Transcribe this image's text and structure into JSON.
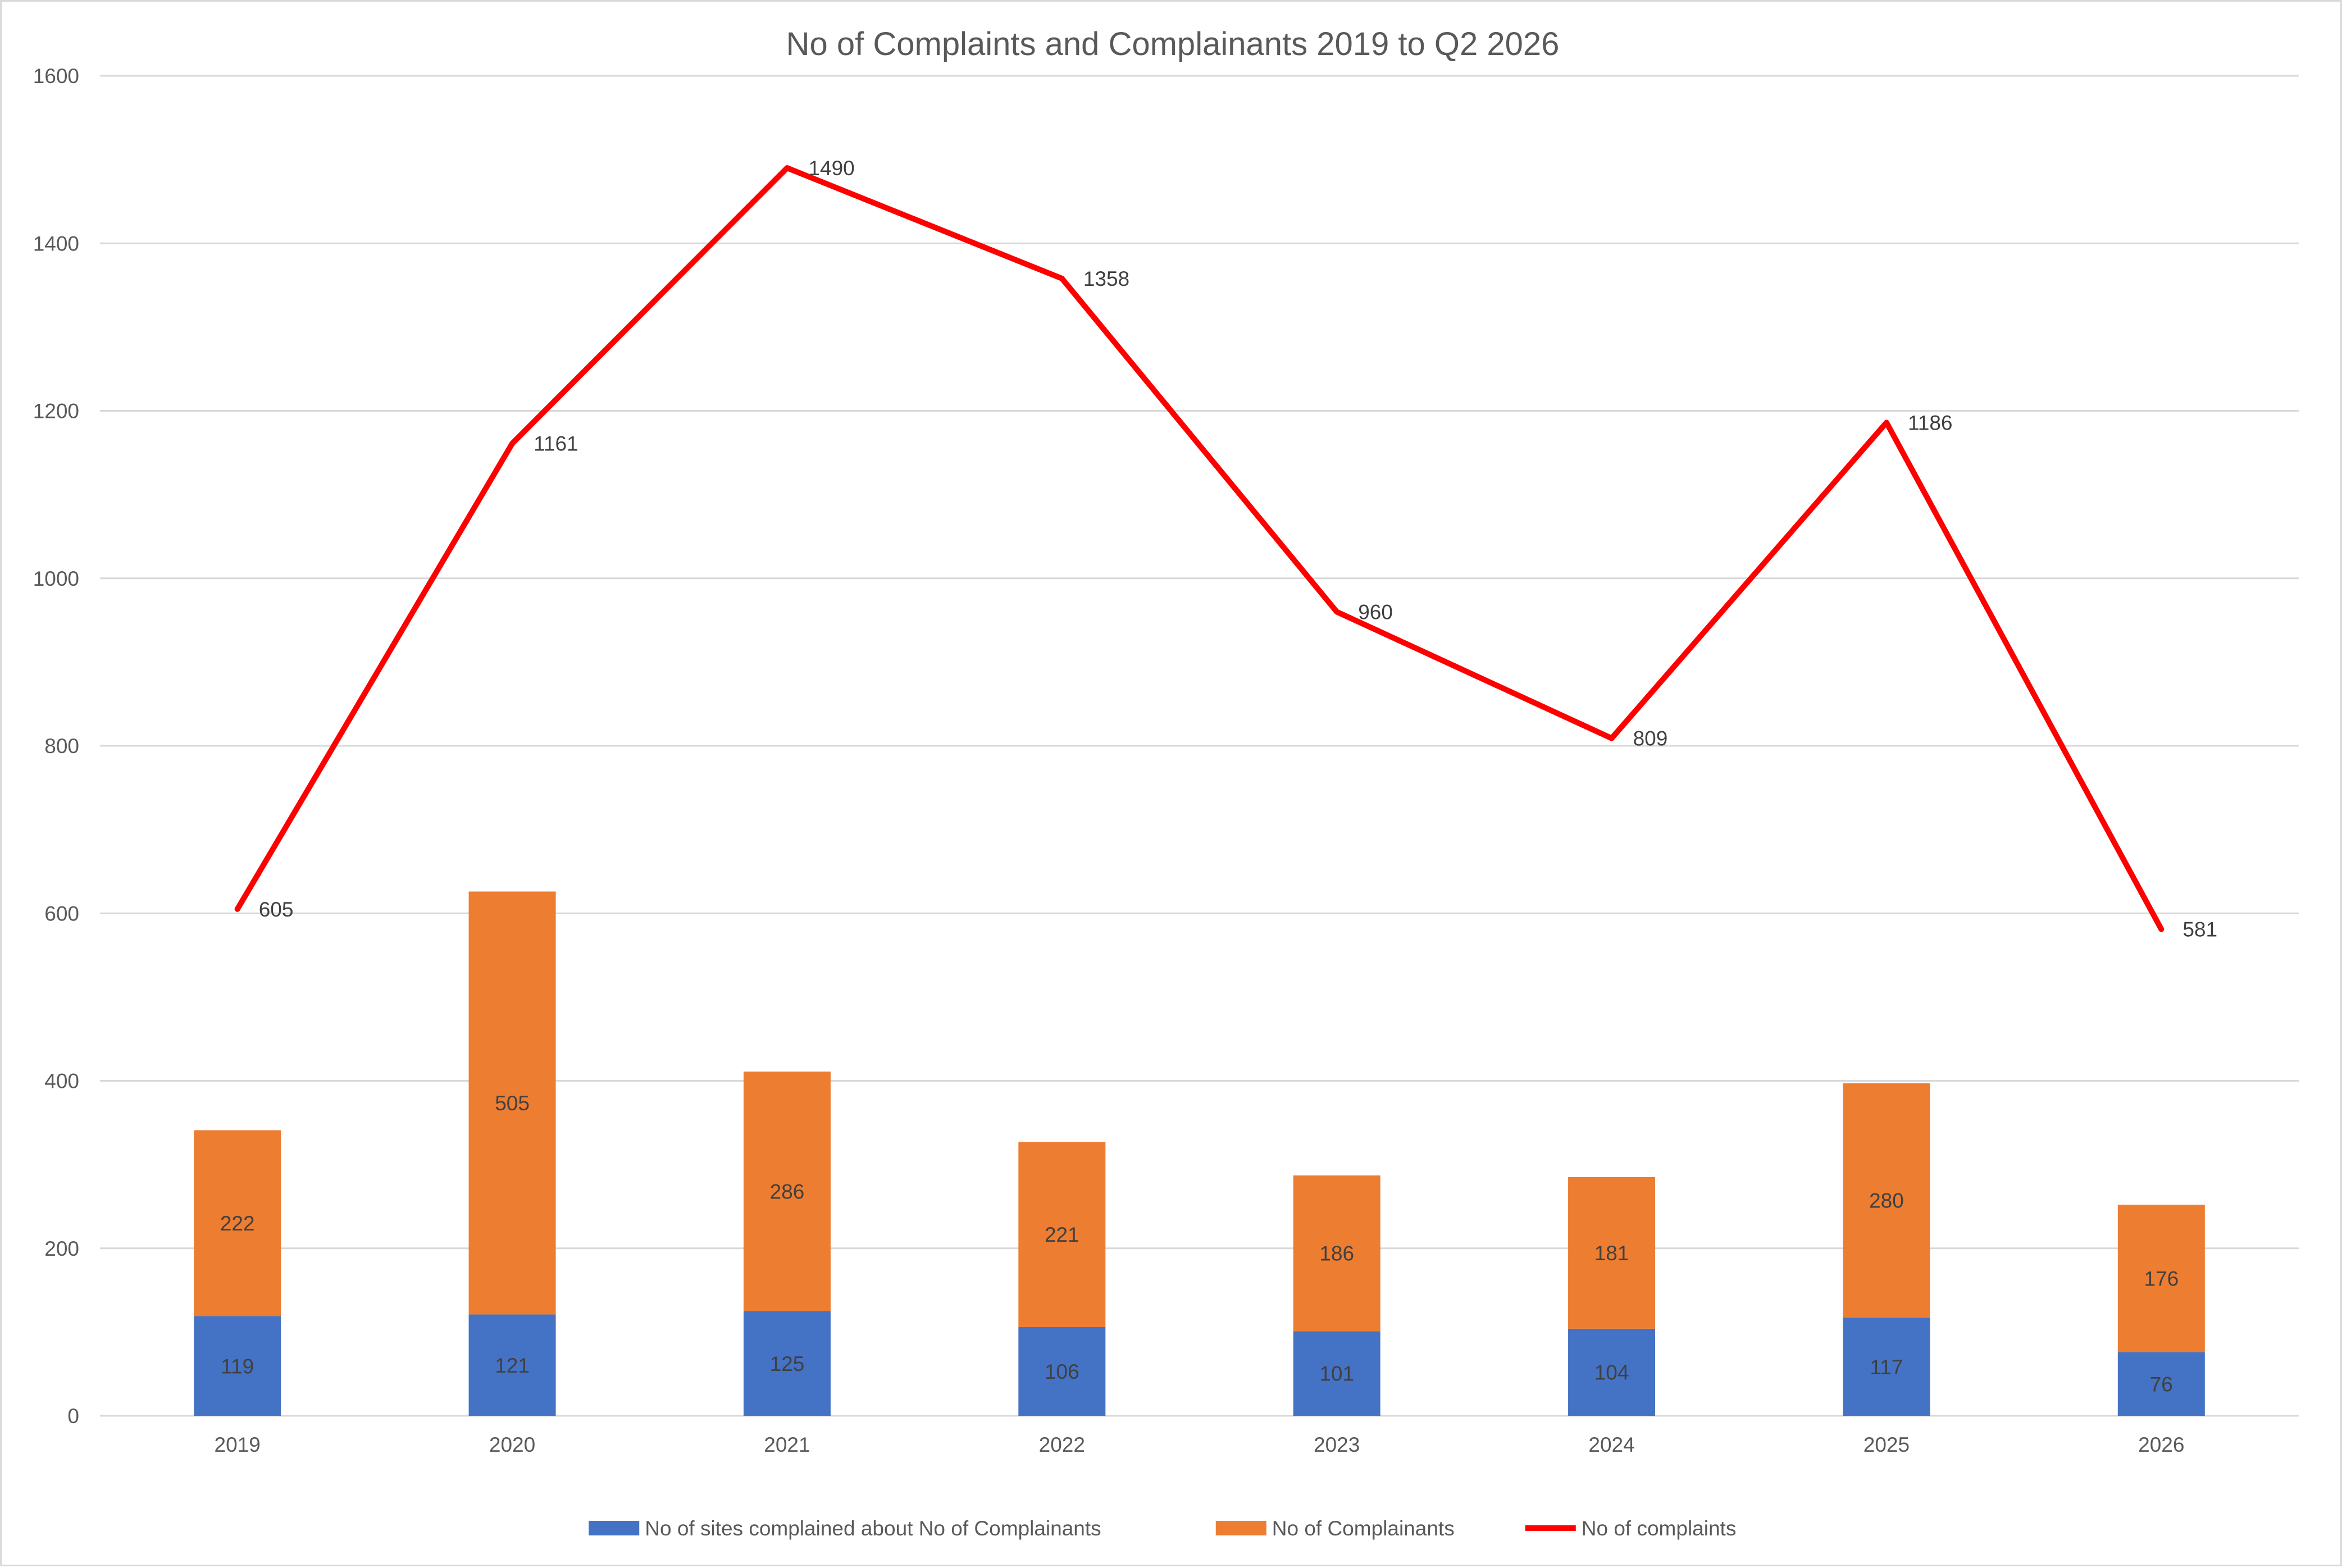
{
  "chart_data": {
    "type": "bar",
    "title": "No of Complaints and Complainants 2019 to Q2 2026",
    "categories": [
      "2019",
      "2020",
      "2021",
      "2022",
      "2023",
      "2024",
      "2025",
      "2026"
    ],
    "ylim": [
      0,
      1600
    ],
    "yticks": [
      0,
      200,
      400,
      600,
      800,
      1000,
      1200,
      1400,
      1600
    ],
    "grid": true,
    "legend_position": "bottom",
    "series": [
      {
        "name": "No of sites complained about No of Complainants",
        "kind": "stacked-bar",
        "color": "#4472c4",
        "values": [
          119,
          121,
          125,
          106,
          101,
          104,
          117,
          76
        ]
      },
      {
        "name": "No of Complainants",
        "kind": "stacked-bar",
        "color": "#ed7d31",
        "values": [
          222,
          505,
          286,
          221,
          186,
          181,
          280,
          176
        ]
      },
      {
        "name": "No of complaints",
        "kind": "line",
        "color": "#ff0000",
        "values": [
          605,
          1161,
          1490,
          1358,
          960,
          809,
          1186,
          581
        ]
      }
    ]
  }
}
